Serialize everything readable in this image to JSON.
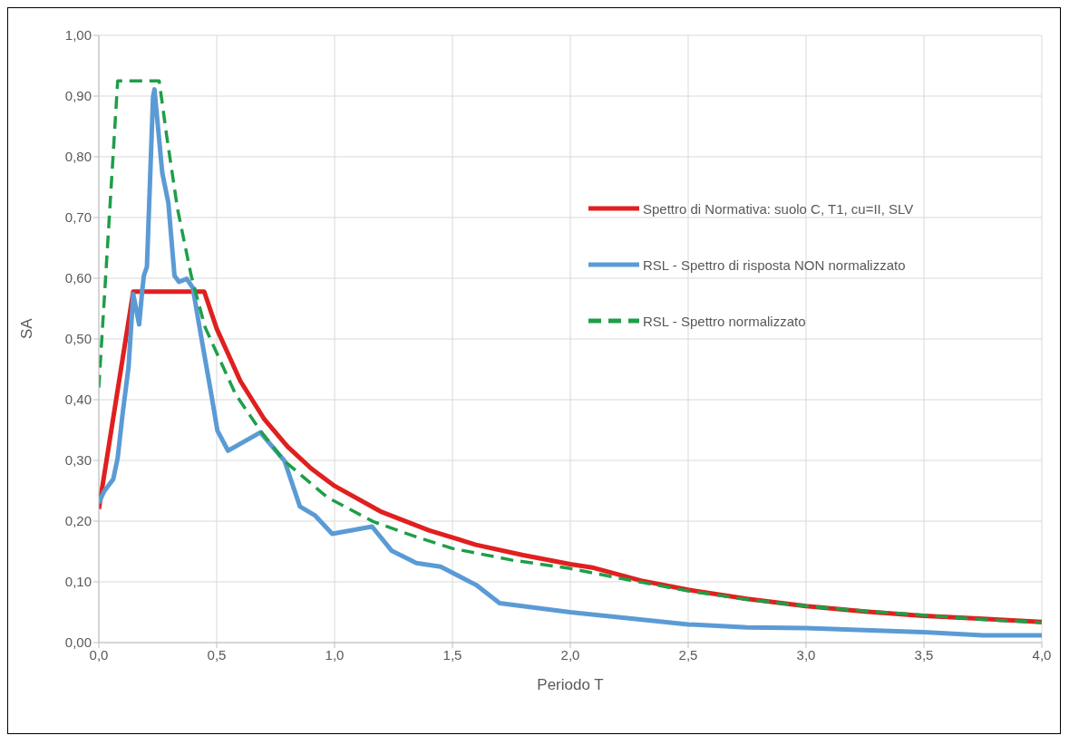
{
  "chart_data": {
    "type": "line",
    "xlabel": "Periodo T",
    "ylabel": "SA",
    "xlim": [
      0,
      4
    ],
    "xticks": [
      {
        "value": 0,
        "label": "0,0"
      },
      {
        "value": 0.5,
        "label": "0,5"
      },
      {
        "value": 1,
        "label": "1,0"
      },
      {
        "value": 1.5,
        "label": "1,5"
      },
      {
        "value": 2,
        "label": "2,0"
      },
      {
        "value": 2.5,
        "label": "2,5"
      },
      {
        "value": 3,
        "label": "3,0"
      },
      {
        "value": 3.5,
        "label": "3,5"
      },
      {
        "value": 4,
        "label": "4,0"
      }
    ],
    "ylim": [
      0,
      1
    ],
    "yticks": [
      {
        "value": 0,
        "label": "0,00"
      },
      {
        "value": 0.1,
        "label": "0,10"
      },
      {
        "value": 0.2,
        "label": "0,20"
      },
      {
        "value": 0.3,
        "label": "0,30"
      },
      {
        "value": 0.4,
        "label": "0,40"
      },
      {
        "value": 0.5,
        "label": "0,50"
      },
      {
        "value": 0.6,
        "label": "0,60"
      },
      {
        "value": 0.7,
        "label": "0,70"
      },
      {
        "value": 0.8,
        "label": "0,80"
      },
      {
        "value": 0.9,
        "label": "0,90"
      },
      {
        "value": 1,
        "label": "1,00"
      }
    ],
    "grid": true,
    "legend": "top right",
    "marker": "none",
    "series": [
      {
        "name": "Spettro di Normativa: suolo C, T1, cu=II, SLV",
        "color": "#e0201f",
        "line_style": "solid",
        "x": [
          0,
          0.146,
          0.447,
          0.5,
          0.6,
          0.7,
          0.8,
          0.9,
          1.0,
          1.2,
          1.4,
          1.6,
          1.8,
          2.0,
          2.1,
          2.3,
          2.5,
          2.75,
          3.0,
          3.25,
          3.5,
          3.75,
          4.0
        ],
        "values": [
          0.22,
          0.578,
          0.578,
          0.517,
          0.431,
          0.369,
          0.323,
          0.287,
          0.258,
          0.215,
          0.185,
          0.161,
          0.144,
          0.129,
          0.123,
          0.102,
          0.087,
          0.072,
          0.06,
          0.051,
          0.044,
          0.039,
          0.034
        ]
      },
      {
        "name": "RSL - Spettro di risposta NON normalizzato",
        "color": "#5b9bd5",
        "line_style": "solid",
        "x": [
          0,
          0.022,
          0.061,
          0.08,
          0.1,
          0.126,
          0.146,
          0.171,
          0.184,
          0.191,
          0.204,
          0.23,
          0.236,
          0.269,
          0.295,
          0.321,
          0.34,
          0.373,
          0.399,
          0.425,
          0.477,
          0.503,
          0.548,
          0.685,
          0.788,
          0.853,
          0.918,
          0.99,
          1.159,
          1.243,
          1.347,
          1.45,
          1.6,
          1.7,
          2.0,
          2.25,
          2.5,
          2.75,
          3.0,
          3.5,
          3.75,
          4.0
        ],
        "values": [
          0.23,
          0.249,
          0.269,
          0.304,
          0.374,
          0.454,
          0.574,
          0.524,
          0.579,
          0.604,
          0.619,
          0.899,
          0.911,
          0.774,
          0.724,
          0.604,
          0.594,
          0.599,
          0.584,
          0.524,
          0.409,
          0.349,
          0.316,
          0.346,
          0.299,
          0.224,
          0.209,
          0.179,
          0.191,
          0.151,
          0.131,
          0.125,
          0.095,
          0.065,
          0.05,
          0.04,
          0.03,
          0.025,
          0.024,
          0.017,
          0.012,
          0.012
        ]
      },
      {
        "name": "RSL - Spettro normalizzato",
        "color": "#1f9e48",
        "line_style": "dashed",
        "x": [
          0,
          0.08,
          0.256,
          0.288,
          0.334,
          0.392,
          0.451,
          0.58,
          0.685,
          0.787,
          0.97,
          1.165,
          1.347,
          1.5,
          1.75,
          2.0,
          2.25,
          2.5,
          2.75,
          3.0,
          3.25,
          3.5,
          3.75,
          4.0
        ],
        "values": [
          0.42,
          0.925,
          0.925,
          0.834,
          0.714,
          0.604,
          0.519,
          0.409,
          0.349,
          0.299,
          0.239,
          0.199,
          0.174,
          0.155,
          0.136,
          0.122,
          0.103,
          0.085,
          0.071,
          0.06,
          0.052,
          0.045,
          0.038,
          0.033
        ]
      }
    ]
  }
}
